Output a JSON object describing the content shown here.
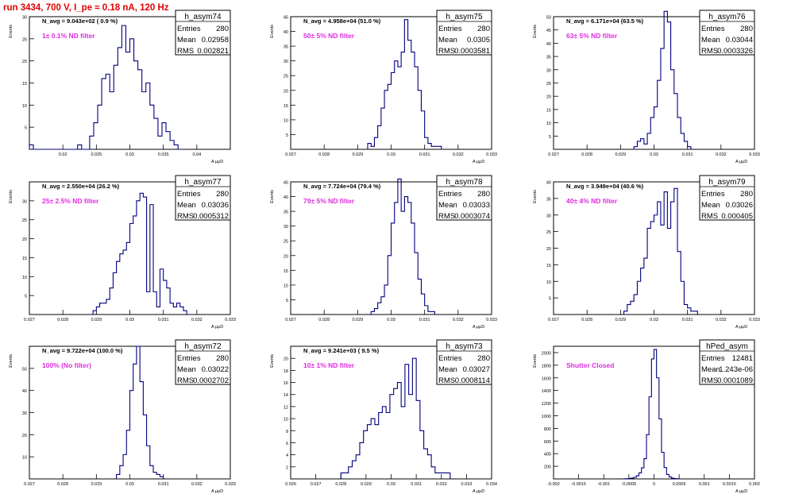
{
  "run_title": "run 3434,   700 V, I_pe ≈ 0.18 nA, 120 Hz",
  "stats_labels": {
    "entries": "Entries",
    "mean": "Mean",
    "rms": "RMS"
  },
  "x_axis_label": "A μμD",
  "y_axis_label": "Events",
  "colors": {
    "hist_line": "#00007f",
    "filter_text": "#e02ce0",
    "title_text": "#e00000",
    "axis": "#000000"
  },
  "chart_data": [
    {
      "type": "histogram",
      "name": "h_asym74",
      "navg": "N_avg = 9.043e+02 ( 0.9 %)",
      "filter": "1± 0.1% ND filter",
      "stats": {
        "entries": "280",
        "mean": "0.02958",
        "rms": "0.002821"
      },
      "xlim": [
        0.015,
        0.045
      ],
      "xticks": [
        0.02,
        0.025,
        0.03,
        0.035,
        0.04
      ],
      "xticklabels": [
        "0.02",
        "0.025",
        "0.03",
        "0.035",
        "0.04"
      ],
      "ylim": [
        0,
        30
      ],
      "yticks": [
        5,
        10,
        15,
        20,
        25,
        30
      ],
      "yticklabels": [
        "5",
        "10",
        "15",
        "20",
        "25",
        "30"
      ],
      "bin_edges": [
        0.015,
        0.0156,
        0.0162,
        0.0168,
        0.0174,
        0.018,
        0.0186,
        0.0192,
        0.0198,
        0.0204,
        0.021,
        0.0216,
        0.0222,
        0.0228,
        0.0234,
        0.024,
        0.0246,
        0.0252,
        0.0258,
        0.0264,
        0.027,
        0.0276,
        0.0282,
        0.0288,
        0.0294,
        0.03,
        0.0306,
        0.0312,
        0.0318,
        0.0324,
        0.033,
        0.0336,
        0.0342,
        0.0348,
        0.0354,
        0.036,
        0.0366,
        0.0372,
        0.0378
      ],
      "counts": [
        1,
        0,
        0,
        0,
        0,
        0,
        0,
        0,
        0,
        0,
        0,
        0,
        1,
        0,
        0,
        3,
        6,
        10,
        16,
        17,
        13,
        19,
        23,
        28,
        22,
        25,
        20,
        18,
        13,
        15,
        10,
        7,
        3,
        6,
        4,
        2,
        1,
        0
      ]
    },
    {
      "type": "histogram",
      "name": "h_asym75",
      "navg": "N_avg = 4.958e+04 (51.0 %)",
      "filter": "50± 5% ND filter",
      "stats": {
        "entries": "280",
        "mean": "0.0305",
        "rms": "0.0003581"
      },
      "xlim": [
        0.027,
        0.033
      ],
      "xticks": [
        0.027,
        0.028,
        0.029,
        0.03,
        0.031,
        0.032,
        0.033
      ],
      "xticklabels": [
        "0.027",
        "0.028",
        "0.029",
        "0.03",
        "0.031",
        "0.032",
        "0.033"
      ],
      "ylim": [
        0,
        45
      ],
      "yticks": [
        5,
        10,
        15,
        20,
        25,
        30,
        35,
        40,
        45
      ],
      "yticklabels": [
        "5",
        "10",
        "15",
        "20",
        "25",
        "30",
        "35",
        "40",
        "45"
      ],
      "bin_edges": [
        0.0293,
        0.0294,
        0.0295,
        0.0296,
        0.0297,
        0.0298,
        0.0299,
        0.03,
        0.0301,
        0.0302,
        0.0303,
        0.0304,
        0.0305,
        0.0306,
        0.0307,
        0.0308,
        0.0309,
        0.031,
        0.0311,
        0.0312,
        0.0313,
        0.0314,
        0.0315
      ],
      "counts": [
        2,
        1,
        4,
        8,
        14,
        20,
        22,
        26,
        30,
        28,
        33,
        44,
        37,
        33,
        28,
        20,
        13,
        4,
        2,
        1,
        1,
        1
      ]
    },
    {
      "type": "histogram",
      "name": "h_asym76",
      "navg": "N_avg = 6.171e+04 (63.5 %)",
      "filter": "63± 5% ND filter",
      "stats": {
        "entries": "280",
        "mean": "0.03044",
        "rms": "0.0003326"
      },
      "xlim": [
        0.027,
        0.033
      ],
      "xticks": [
        0.027,
        0.028,
        0.029,
        0.03,
        0.031,
        0.032,
        0.033
      ],
      "xticklabels": [
        "0.027",
        "0.028",
        "0.029",
        "0.03",
        "0.031",
        "0.032",
        "0.033"
      ],
      "ylim": [
        0,
        50
      ],
      "yticks": [
        5,
        10,
        15,
        20,
        25,
        30,
        35,
        40,
        45,
        50
      ],
      "yticklabels": [
        "5",
        "10",
        "15",
        "20",
        "25",
        "30",
        "35",
        "40",
        "45",
        "50"
      ],
      "bin_edges": [
        0.0294,
        0.0295,
        0.0296,
        0.0297,
        0.0298,
        0.0299,
        0.03,
        0.0301,
        0.0302,
        0.0303,
        0.0304,
        0.0305,
        0.0306,
        0.0307,
        0.0308,
        0.0309,
        0.031,
        0.0311
      ],
      "counts": [
        1,
        3,
        4,
        2,
        6,
        12,
        16,
        26,
        38,
        52,
        48,
        30,
        21,
        12,
        6,
        3,
        1
      ]
    },
    {
      "type": "histogram",
      "name": "h_asym77",
      "navg": "N_avg = 2.550e+04 (26.2 %)",
      "filter": "25± 2.5% ND filter",
      "stats": {
        "entries": "280",
        "mean": "0.03036",
        "rms": "0.0005312"
      },
      "xlim": [
        0.027,
        0.033
      ],
      "xticks": [
        0.027,
        0.028,
        0.029,
        0.03,
        0.031,
        0.032,
        0.033
      ],
      "xticklabels": [
        "0.027",
        "0.028",
        "0.029",
        "0.03",
        "0.031",
        "0.032",
        "0.033"
      ],
      "ylim": [
        0,
        35
      ],
      "yticks": [
        5,
        10,
        15,
        20,
        25,
        30
      ],
      "yticklabels": [
        "5",
        "10",
        "15",
        "20",
        "25",
        "30"
      ],
      "bin_edges": [
        0.0289,
        0.029,
        0.0291,
        0.0292,
        0.0293,
        0.0294,
        0.0295,
        0.0296,
        0.0297,
        0.0298,
        0.0299,
        0.03,
        0.0301,
        0.0302,
        0.0303,
        0.0304,
        0.0305,
        0.0306,
        0.0307,
        0.0308,
        0.0309,
        0.031,
        0.0311,
        0.0312,
        0.0313,
        0.0314,
        0.0315,
        0.0316,
        0.0317
      ],
      "counts": [
        1,
        2,
        3,
        3,
        4,
        7,
        11,
        14,
        16,
        17,
        19,
        24,
        26,
        30,
        32,
        31,
        6,
        29,
        6,
        2,
        12,
        9,
        7,
        3,
        2,
        3,
        2,
        1
      ]
    },
    {
      "type": "histogram",
      "name": "h_asym78",
      "navg": "N_avg = 7.724e+04 (79.4 %)",
      "filter": "79± 5% ND filter",
      "stats": {
        "entries": "280",
        "mean": "0.03033",
        "rms": "0.0003074"
      },
      "xlim": [
        0.027,
        0.033
      ],
      "xticks": [
        0.027,
        0.028,
        0.029,
        0.03,
        0.031,
        0.032,
        0.033
      ],
      "xticklabels": [
        "0.027",
        "0.028",
        "0.029",
        "0.03",
        "0.031",
        "0.032",
        "0.033"
      ],
      "ylim": [
        0,
        45
      ],
      "yticks": [
        5,
        10,
        15,
        20,
        25,
        30,
        35,
        40,
        45
      ],
      "yticklabels": [
        "5",
        "10",
        "15",
        "20",
        "25",
        "30",
        "35",
        "40",
        "45"
      ],
      "bin_edges": [
        0.0294,
        0.0295,
        0.0296,
        0.0297,
        0.0298,
        0.0299,
        0.03,
        0.0301,
        0.0302,
        0.0303,
        0.0304,
        0.0305,
        0.0306,
        0.0307,
        0.0308,
        0.0309,
        0.031,
        0.0311,
        0.0312,
        0.0313
      ],
      "counts": [
        1,
        2,
        4,
        6,
        10,
        20,
        31,
        38,
        46,
        35,
        40,
        38,
        31,
        21,
        12,
        7,
        3,
        1,
        1
      ]
    },
    {
      "type": "histogram",
      "name": "h_asym79",
      "navg": "N_avg = 3.949e+04 (40.6 %)",
      "filter": "40± 4% ND filter",
      "stats": {
        "entries": "280",
        "mean": "0.03026",
        "rms": "0.000405"
      },
      "xlim": [
        0.027,
        0.033
      ],
      "xticks": [
        0.027,
        0.028,
        0.029,
        0.03,
        0.031,
        0.032,
        0.033
      ],
      "xticklabels": [
        "0.027",
        "0.028",
        "0.029",
        "0.03",
        "0.031",
        "0.032",
        "0.033"
      ],
      "ylim": [
        0,
        40
      ],
      "yticks": [
        5,
        10,
        15,
        20,
        25,
        30,
        35,
        40
      ],
      "yticklabels": [
        "5",
        "10",
        "15",
        "20",
        "25",
        "30",
        "35",
        "40"
      ],
      "bin_edges": [
        0.0291,
        0.0292,
        0.0293,
        0.0294,
        0.0295,
        0.0296,
        0.0297,
        0.0298,
        0.0299,
        0.03,
        0.0301,
        0.0302,
        0.0303,
        0.0304,
        0.0305,
        0.0306,
        0.0307,
        0.0308,
        0.0309,
        0.031,
        0.0311,
        0.0312,
        0.0313
      ],
      "counts": [
        1,
        3,
        4,
        6,
        10,
        14,
        17,
        26,
        28,
        30,
        34,
        27,
        37,
        26,
        34,
        38,
        19,
        10,
        3,
        2,
        1,
        1
      ]
    },
    {
      "type": "histogram",
      "name": "h_asym72",
      "navg": "N_avg = 9.722e+04 (100.0 %)",
      "filter": "100% (No filter)",
      "stats": {
        "entries": "280",
        "mean": "0.03022",
        "rms": "0.0002702"
      },
      "xlim": [
        0.027,
        0.033
      ],
      "xticks": [
        0.027,
        0.028,
        0.029,
        0.03,
        0.031,
        0.032,
        0.033
      ],
      "xticklabels": [
        "0.027",
        "0.028",
        "0.029",
        "0.03",
        "0.031",
        "0.032",
        "0.033"
      ],
      "ylim": [
        0,
        60
      ],
      "yticks": [
        10,
        20,
        30,
        40,
        50
      ],
      "yticklabels": [
        "10",
        "20",
        "30",
        "40",
        "50"
      ],
      "bin_edges": [
        0.0296,
        0.0297,
        0.0298,
        0.0299,
        0.03,
        0.0301,
        0.0302,
        0.0303,
        0.0304,
        0.0305,
        0.0306,
        0.0307,
        0.0308,
        0.0309,
        0.031
      ],
      "counts": [
        2,
        6,
        11,
        22,
        40,
        52,
        60,
        44,
        29,
        15,
        6,
        3,
        2,
        1
      ]
    },
    {
      "type": "histogram",
      "name": "h_asym73",
      "navg": "N_avg = 9.241e+03 ( 9.5 %)",
      "filter": "10± 1% ND filter",
      "stats": {
        "entries": "280",
        "mean": "0.03027",
        "rms": "0.0008114"
      },
      "xlim": [
        0.026,
        0.034
      ],
      "xticks": [
        0.026,
        0.027,
        0.028,
        0.029,
        0.03,
        0.031,
        0.032,
        0.033,
        0.034
      ],
      "xticklabels": [
        "0.026",
        "0.027",
        "0.028",
        "0.029",
        "0.03",
        "0.031",
        "0.032",
        "0.033",
        "0.034"
      ],
      "ylim": [
        0,
        22
      ],
      "yticks": [
        2,
        4,
        6,
        8,
        10,
        12,
        14,
        16,
        18,
        20
      ],
      "yticklabels": [
        "2",
        "4",
        "6",
        "8",
        "10",
        "12",
        "14",
        "16",
        "18",
        "20"
      ],
      "bin_edges": [
        0.028,
        0.02815,
        0.0283,
        0.02845,
        0.0286,
        0.02875,
        0.0289,
        0.02905,
        0.0292,
        0.02935,
        0.0295,
        0.02965,
        0.0298,
        0.02995,
        0.0301,
        0.03025,
        0.0304,
        0.03055,
        0.0307,
        0.03085,
        0.031,
        0.03115,
        0.0313,
        0.03145,
        0.0316,
        0.03175,
        0.0319,
        0.03205,
        0.0322,
        0.03235
      ],
      "counts": [
        1,
        1,
        2,
        3,
        4,
        6,
        8,
        9,
        10,
        9,
        11,
        12,
        11,
        14,
        15,
        16,
        12,
        19,
        14,
        20,
        13,
        8,
        5,
        4,
        2,
        1,
        1,
        1,
        1
      ]
    },
    {
      "type": "histogram",
      "name": "hPed_asym",
      "navg": "",
      "filter": "Shutter Closed",
      "stats": {
        "entries": "12481",
        "mean": "1.243e-06",
        "rms": "0.0001089"
      },
      "xlim": [
        -0.002,
        0.002
      ],
      "xticks": [
        -0.002,
        -0.0015,
        -0.001,
        -0.0005,
        0,
        0.0005,
        0.001,
        0.0015,
        0.002
      ],
      "xticklabels": [
        "-0.002",
        "-0.0015",
        "-0.001",
        "-0.0005",
        "0",
        "0.0005",
        "0.001",
        "0.0015",
        "0.002"
      ],
      "ylim": [
        0,
        2100
      ],
      "yticks": [
        200,
        400,
        600,
        800,
        1000,
        1200,
        1400,
        1600,
        1800,
        2000
      ],
      "yticklabels": [
        "200",
        "400",
        "600",
        "800",
        "1000",
        "1200",
        "1400",
        "1600",
        "1800",
        "2000"
      ],
      "bin_edges": [
        -0.0006,
        -0.00055,
        -0.0005,
        -0.00045,
        -0.0004,
        -0.00035,
        -0.0003,
        -0.00025,
        -0.0002,
        -0.00015,
        -0.0001,
        -5e-05,
        0.0,
        5e-05,
        0.0001,
        0.00015,
        0.0002,
        0.00025,
        0.0003,
        0.00035,
        0.0004,
        0.00045,
        0.0005
      ],
      "counts": [
        2,
        4,
        8,
        14,
        25,
        50,
        95,
        175,
        320,
        700,
        1300,
        1900,
        2050,
        1600,
        950,
        420,
        180,
        70,
        30,
        12,
        5,
        2
      ]
    }
  ]
}
